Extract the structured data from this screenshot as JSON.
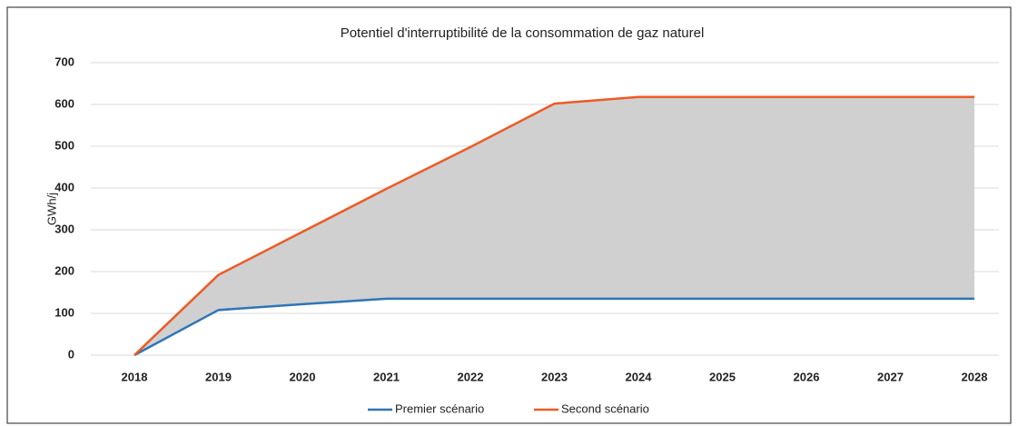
{
  "chart_data": {
    "type": "line",
    "title": "Potentiel d'interruptibilité de la consommation de gaz naturel",
    "y_label": "GWh/j",
    "categories": [
      "2018",
      "2019",
      "2020",
      "2021",
      "2022",
      "2023",
      "2024",
      "2025",
      "2026",
      "2027",
      "2028"
    ],
    "series": [
      {
        "name": "Premier scénario",
        "color": "#2e75b6",
        "values": [
          0,
          108,
          122,
          135,
          135,
          135,
          135,
          135,
          135,
          135,
          135
        ]
      },
      {
        "name": "Second scénario",
        "color": "#ee5a24",
        "values": [
          0,
          192,
          295,
          398,
          498,
          602,
          618,
          618,
          618,
          618,
          618
        ]
      }
    ],
    "fill_between": true,
    "fill_color": "#d0d0d0",
    "ylim": [
      0,
      700
    ],
    "yticks": [
      0,
      100,
      200,
      300,
      400,
      500,
      600,
      700
    ],
    "grid": true,
    "legend": "bottom"
  }
}
